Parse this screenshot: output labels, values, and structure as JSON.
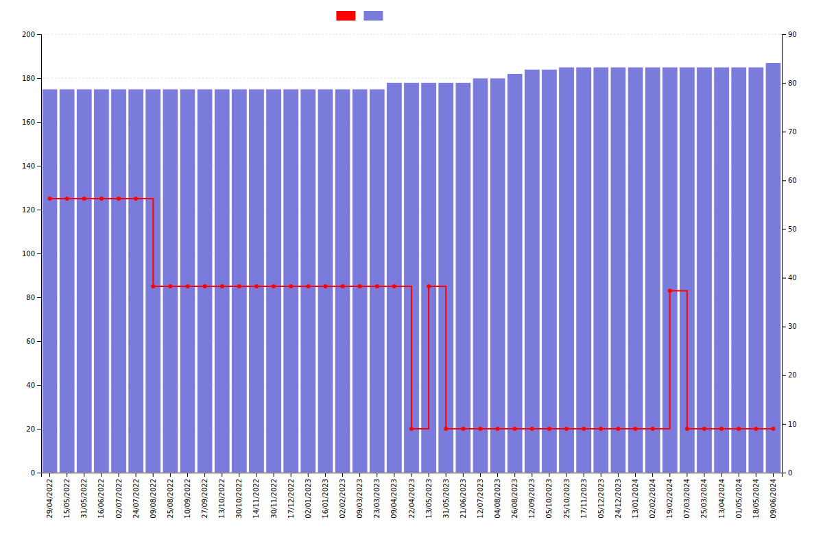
{
  "chart_data": {
    "type": "bar",
    "categories": [
      "29/04/2022",
      "15/05/2022",
      "31/05/2022",
      "16/06/2022",
      "02/07/2022",
      "24/07/2022",
      "09/08/2022",
      "25/08/2022",
      "10/09/2022",
      "27/09/2022",
      "13/10/2022",
      "30/10/2022",
      "14/11/2022",
      "30/11/2022",
      "17/12/2022",
      "02/01/2023",
      "16/01/2023",
      "02/02/2023",
      "09/03/2023",
      "23/03/2023",
      "09/04/2023",
      "22/04/2023",
      "13/05/2023",
      "31/05/2023",
      "21/06/2023",
      "12/07/2023",
      "04/08/2023",
      "26/08/2023",
      "12/09/2023",
      "05/10/2023",
      "25/10/2023",
      "17/11/2023",
      "05/12/2023",
      "24/12/2023",
      "13/01/2024",
      "02/02/2024",
      "19/02/2024",
      "07/03/2024",
      "25/03/2024",
      "13/04/2024",
      "01/05/2024",
      "18/05/2024",
      "09/06/2024"
    ],
    "series": [
      {
        "type": "bar",
        "color": "#7b7bdb",
        "values": [
          175,
          175,
          175,
          175,
          175,
          175,
          175,
          175,
          175,
          175,
          175,
          175,
          175,
          175,
          175,
          175,
          175,
          175,
          175,
          175,
          178,
          178,
          178,
          178,
          178,
          180,
          180,
          182,
          184,
          184,
          185,
          185,
          185,
          185,
          185,
          185,
          185,
          185,
          185,
          185,
          185,
          185,
          187
        ]
      },
      {
        "type": "step",
        "color": "#ff0000",
        "marker": "circle",
        "values": [
          125,
          125,
          125,
          125,
          125,
          125,
          85,
          85,
          85,
          85,
          85,
          85,
          85,
          85,
          85,
          85,
          85,
          85,
          85,
          85,
          85,
          20,
          85,
          20,
          20,
          20,
          20,
          20,
          20,
          20,
          20,
          20,
          20,
          20,
          20,
          20,
          83,
          20,
          20,
          20,
          20,
          20,
          20
        ]
      }
    ],
    "ylim": [
      0,
      200
    ],
    "yticks": [
      0,
      20,
      40,
      60,
      80,
      100,
      120,
      140,
      160,
      180,
      200
    ],
    "y2lim": [
      0,
      90
    ],
    "y2ticks": [
      0,
      10,
      20,
      30,
      40,
      50,
      60,
      70,
      80,
      90
    ],
    "grid": true,
    "legend": "top"
  }
}
